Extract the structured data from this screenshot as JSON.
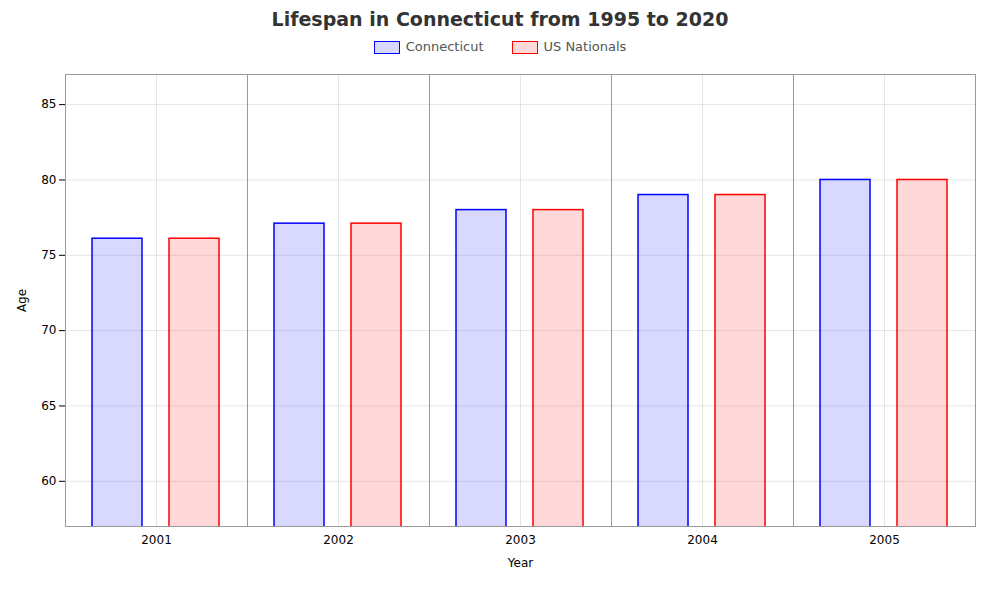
{
  "chart_data": {
    "type": "bar",
    "title": "Lifespan in Connecticut from 1995 to 2020",
    "xlabel": "Year",
    "ylabel": "Age",
    "categories": [
      "2001",
      "2002",
      "2003",
      "2004",
      "2005"
    ],
    "series": [
      {
        "name": "Connecticut",
        "color": "#0000ff",
        "values": [
          76.1,
          77.1,
          78.0,
          79.0,
          80.0
        ]
      },
      {
        "name": "US Nationals",
        "color": "#ff0000",
        "values": [
          76.1,
          77.1,
          78.0,
          79.0,
          80.0
        ]
      }
    ],
    "ylim": [
      57,
      87
    ],
    "yticks": [
      60,
      65,
      70,
      75,
      80,
      85
    ],
    "grid": true,
    "legend": "top"
  }
}
